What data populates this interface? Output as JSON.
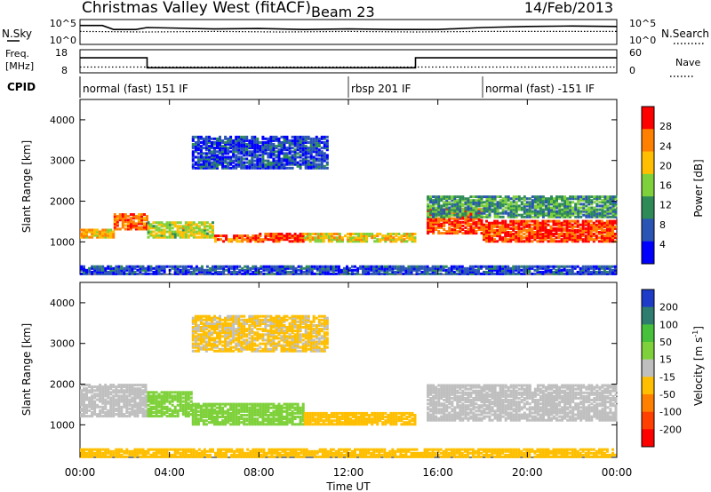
{
  "header": {
    "station": "Christmas Valley West (fitACF)",
    "beam": "Beam 23",
    "date": "14/Feb/2013"
  },
  "chart_data": [
    {
      "type": "line",
      "panel": "noise",
      "left_label": "N.Sky",
      "right_label": "N.Search",
      "left_ticks": [
        "10^5",
        "10^0"
      ],
      "right_ticks": [
        "10^5",
        "10^0"
      ],
      "series": [
        {
          "name": "N.Sky",
          "style": "solid",
          "x_hours": [
            0,
            1,
            1.5,
            2.5,
            3,
            4,
            6,
            8,
            10,
            12,
            14,
            16,
            18,
            20,
            22,
            24
          ],
          "values": [
            3.8,
            3.8,
            3.0,
            3.0,
            3.4,
            3.3,
            3.1,
            3.2,
            3.0,
            3.1,
            3.0,
            3.0,
            3.4,
            3.6,
            3.7,
            3.6
          ]
        },
        {
          "name": "N.Search",
          "style": "dotted",
          "x_hours": [
            0,
            3,
            6,
            9,
            12,
            15,
            18,
            21,
            24
          ],
          "values": [
            2.6,
            2.5,
            2.6,
            2.5,
            2.6,
            2.5,
            2.6,
            2.6,
            2.6
          ]
        }
      ],
      "ylim_log10": [
        0,
        5
      ]
    },
    {
      "type": "line",
      "panel": "frequency",
      "left_label": "Freq.",
      "left_unit": "[MHz]",
      "right_label": "Nave",
      "left_ticks": [
        "18",
        "8"
      ],
      "right_ticks": [
        "60",
        "0"
      ],
      "series": [
        {
          "name": "Freq.",
          "style": "solid",
          "x_hours": [
            0,
            3,
            3,
            15,
            15,
            24
          ],
          "values": [
            14.5,
            14.5,
            10.2,
            10.2,
            14.5,
            14.5
          ]
        },
        {
          "name": "Nave",
          "style": "dotted",
          "x_hours": [
            0,
            24
          ],
          "values": [
            10.5,
            10.5
          ]
        }
      ],
      "ylim": [
        8,
        18
      ]
    },
    {
      "type": "table",
      "panel": "cpid",
      "label": "CPID",
      "segments": [
        {
          "start": 0,
          "end": 12,
          "text": "normal (fast) 151 IF"
        },
        {
          "start": 12,
          "end": 18,
          "text": "rbsp 201 IF"
        },
        {
          "start": 18,
          "end": 24,
          "text": "normal (fast) -151 IF"
        }
      ]
    },
    {
      "type": "heatmap",
      "panel": "power",
      "ylabel": "Slant Range [km]",
      "yticks": [
        1000,
        2000,
        3000,
        4000
      ],
      "ylim": [
        200,
        4500
      ],
      "colorbar": {
        "label": "Power [dB]",
        "ticks": [
          4,
          8,
          12,
          16,
          20,
          24,
          28
        ],
        "colors": [
          "#0000ff",
          "#2a55b5",
          "#2e8b57",
          "#7fd13b",
          "#ffbf00",
          "#ff7f00",
          "#ff0000"
        ],
        "range": [
          0,
          32
        ]
      },
      "echo_regions": [
        {
          "t0": 0.0,
          "t1": 1.5,
          "r0": 1100,
          "r1": 1300,
          "value": 22
        },
        {
          "t0": 1.5,
          "t1": 3.0,
          "r0": 1300,
          "r1": 1700,
          "value": 26
        },
        {
          "t0": 3.0,
          "t1": 6.0,
          "r0": 1100,
          "r1": 1500,
          "value": 18
        },
        {
          "t0": 6.0,
          "t1": 8.0,
          "r0": 1000,
          "r1": 1150,
          "value": 26
        },
        {
          "t0": 8.0,
          "t1": 10.0,
          "r0": 1000,
          "r1": 1200,
          "value": 28
        },
        {
          "t0": 10.0,
          "t1": 15.0,
          "r0": 1000,
          "r1": 1200,
          "value": 20
        },
        {
          "t0": 15.5,
          "t1": 18.0,
          "r0": 1200,
          "r1": 1800,
          "value": 28
        },
        {
          "t0": 18.0,
          "t1": 24.0,
          "r0": 1000,
          "r1": 1500,
          "value": 28
        },
        {
          "t0": 5.0,
          "t1": 11.0,
          "r0": 2800,
          "r1": 3600,
          "value": 6
        },
        {
          "t0": 15.5,
          "t1": 24.0,
          "r0": 1600,
          "r1": 2100,
          "value": 12
        },
        {
          "t0": 0.0,
          "t1": 24.0,
          "r0": 200,
          "r1": 400,
          "value": 6
        }
      ]
    },
    {
      "type": "heatmap",
      "panel": "velocity",
      "ylabel": "Slant Range [km]",
      "yticks": [
        1000,
        2000,
        3000,
        4000
      ],
      "ylim": [
        200,
        4500
      ],
      "colorbar": {
        "label_main": "Velocity [m s",
        "label_sup": "-1",
        "label_end": "]",
        "ticks": [
          200,
          100,
          50,
          15,
          -15,
          -50,
          -100,
          -200
        ],
        "colors": [
          "#1f3cc8",
          "#2e7d6e",
          "#47c13b",
          "#7fd13b",
          "#bfbfbf",
          "#ffbf00",
          "#ff7f00",
          "#ff4000",
          "#ff0000"
        ],
        "range": [
          -250,
          250
        ]
      },
      "echo_regions": [
        {
          "t0": 0.0,
          "t1": 3.0,
          "r0": 1200,
          "r1": 2000,
          "value": 0
        },
        {
          "t0": 3.0,
          "t1": 5.0,
          "r0": 1200,
          "r1": 1800,
          "value": 70
        },
        {
          "t0": 5.0,
          "t1": 10.0,
          "r0": 1000,
          "r1": 1500,
          "value": 60
        },
        {
          "t0": 10.0,
          "t1": 15.0,
          "r0": 1000,
          "r1": 1300,
          "value": -40
        },
        {
          "t0": 15.5,
          "t1": 24.0,
          "r0": 1100,
          "r1": 2000,
          "value": 0
        },
        {
          "t0": 5.0,
          "t1": 11.0,
          "r0": 2800,
          "r1": 3700,
          "value": -30
        },
        {
          "t0": 0.0,
          "t1": 24.0,
          "r0": 200,
          "r1": 400,
          "value": -60
        }
      ]
    }
  ],
  "x_axis": {
    "label": "Time UT",
    "ticks": [
      "00:00",
      "04:00",
      "08:00",
      "12:00",
      "16:00",
      "20:00",
      "00:00"
    ],
    "range_hours": [
      0,
      24
    ]
  }
}
